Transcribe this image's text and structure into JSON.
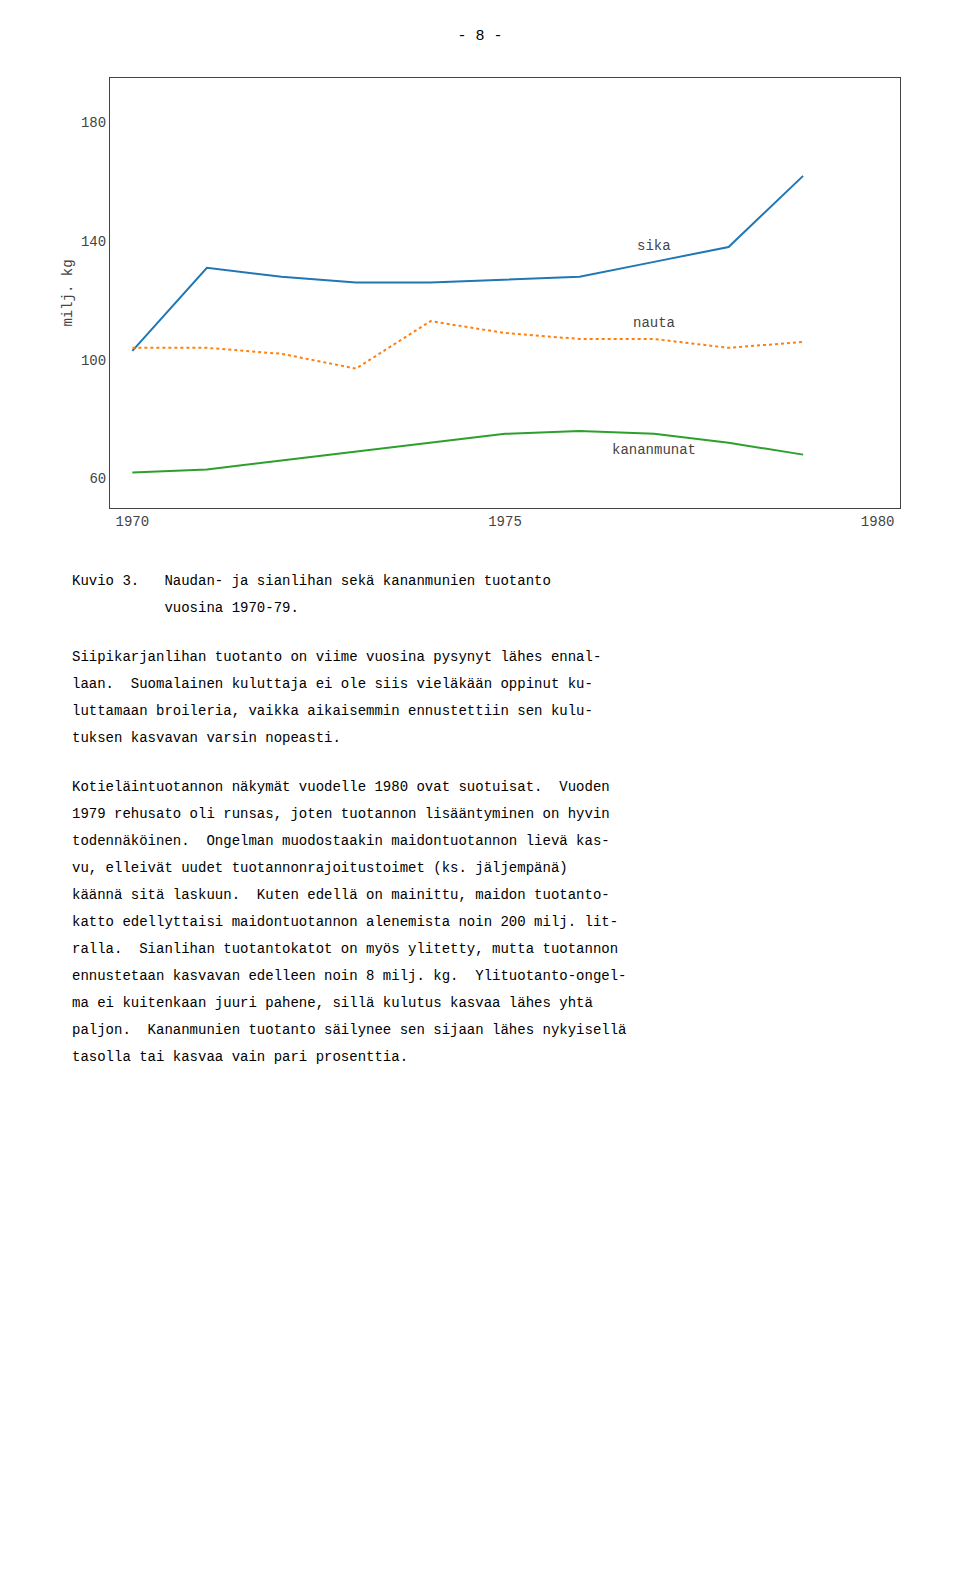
{
  "page_number": "- 8 -",
  "chart_data": {
    "type": "line",
    "ylabel": "milj. kg",
    "x": [
      1970,
      1971,
      1972,
      1973,
      1974,
      1975,
      1976,
      1977,
      1978,
      1979
    ],
    "series": [
      {
        "name": "sika",
        "line_style": "solid",
        "values": [
          103,
          131,
          128,
          126,
          126,
          127,
          128,
          133,
          138,
          162
        ]
      },
      {
        "name": "nauta",
        "line_style": "dotted",
        "values": [
          104,
          104,
          102,
          97,
          113,
          109,
          107,
          107,
          104,
          106
        ]
      },
      {
        "name": "kananmunat",
        "line_style": "solid",
        "values": [
          62,
          63,
          66,
          69,
          72,
          75,
          76,
          75,
          72,
          68
        ]
      }
    ],
    "xlim": [
      1969.7,
      1980.3
    ],
    "xticks": [
      1970,
      1975,
      1980
    ],
    "ylim": [
      50,
      195
    ],
    "yticks": [
      60,
      100,
      140,
      180
    ],
    "grid": false
  },
  "caption": [
    "Kuvio 3.   Naudan- ja sianlihan sekä kananmunien tuotanto",
    "           vuosina 1970-79."
  ],
  "paragraphs": [
    [
      "Siipikarjanlihan tuotanto on viime vuosina pysynyt lähes ennal-",
      "laan.  Suomalainen kuluttaja ei ole siis vieläkään oppinut ku-",
      "luttamaan broileria, vaikka aikaisemmin ennustettiin sen kulu-",
      "tuksen kasvavan varsin nopeasti."
    ],
    [
      "Kotieläintuotannon näkymät vuodelle 1980 ovat suotuisat.  Vuoden",
      "1979 rehusato oli runsas, joten tuotannon lisääntyminen on hyvin",
      "todennäköinen.  Ongelman muodostaakin maidontuotannon lievä kas-",
      "vu, elleivät uudet tuotannonrajoitustoimet (ks. jäljempänä)",
      "käännä sitä laskuun.  Kuten edellä on mainittu, maidon tuotanto-",
      "katto edellyttaisi maidontuotannon alenemista noin 200 milj. lit-",
      "ralla.  Sianlihan tuotantokatot on myös ylitetty, mutta tuotannon",
      "ennustetaan kasvavan edelleen noin 8 milj. kg.  Ylituotanto-ongel-",
      "ma ei kuitenkaan juuri pahene, sillä kulutus kasvaa lähes yhtä",
      "paljon.  Kananmunien tuotanto säilynee sen sijaan lähes nykyisellä",
      "tasolla tai kasvaa vain pari prosenttia."
    ]
  ]
}
